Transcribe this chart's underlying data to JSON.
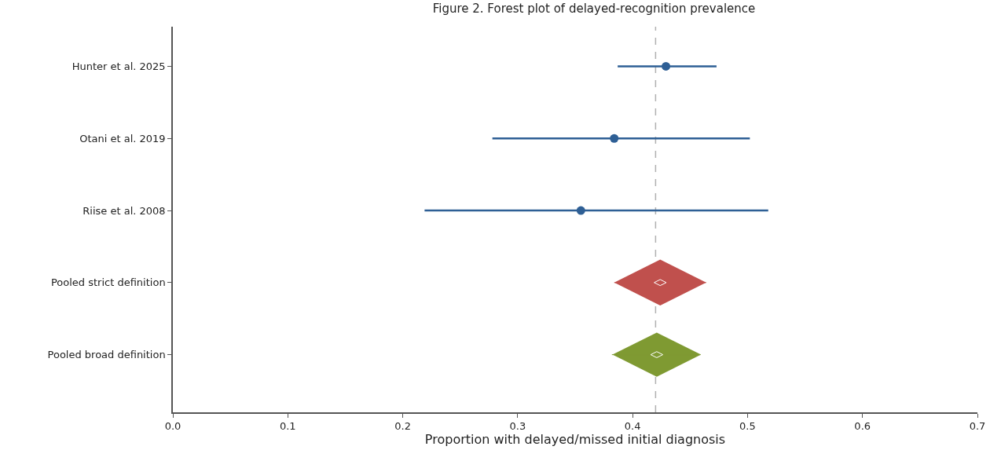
{
  "chart_data": {
    "type": "scatter",
    "orientation": "horizontal",
    "title": "Figure 2. Forest plot of delayed-recognition prevalence",
    "xlabel": "Proportion with delayed/missed initial diagnosis",
    "categories": [
      "Hunter et al. 2025",
      "Otani et al. 2019",
      "Riise et al. 2008",
      "Pooled strict definition",
      "Pooled broad definition"
    ],
    "series": [
      {
        "type": "scatter",
        "marker": "circle",
        "color": "#2e5f95",
        "values": [
          0.429,
          0.384,
          0.355,
          null,
          null
        ],
        "errors": [
          [
            0.387,
            0.473
          ],
          [
            0.278,
            0.502
          ],
          [
            0.219,
            0.518
          ],
          null,
          null
        ]
      },
      {
        "type": "scatter",
        "marker": "diamond",
        "color": "#c0504d",
        "values": [
          null,
          null,
          null,
          0.424,
          null
        ],
        "errors": [
          null,
          null,
          null,
          [
            0.384,
            0.464
          ],
          null
        ]
      },
      {
        "type": "scatter",
        "marker": "diamond",
        "color": "#7f9a32",
        "values": [
          null,
          null,
          null,
          null,
          0.421
        ],
        "errors": [
          null,
          null,
          null,
          null,
          [
            0.382,
            0.459
          ]
        ]
      }
    ],
    "xlim": [
      0,
      0.7
    ],
    "xticks": [
      {
        "value": 0,
        "label": "0.0"
      },
      0.1,
      0.2,
      0.3,
      0.4,
      0.5,
      0.6,
      0.7
    ],
    "ref_lines": [
      {
        "axis": "x",
        "value": 0.42,
        "color": "#b0b0b0",
        "line_style": "dashed"
      }
    ]
  }
}
